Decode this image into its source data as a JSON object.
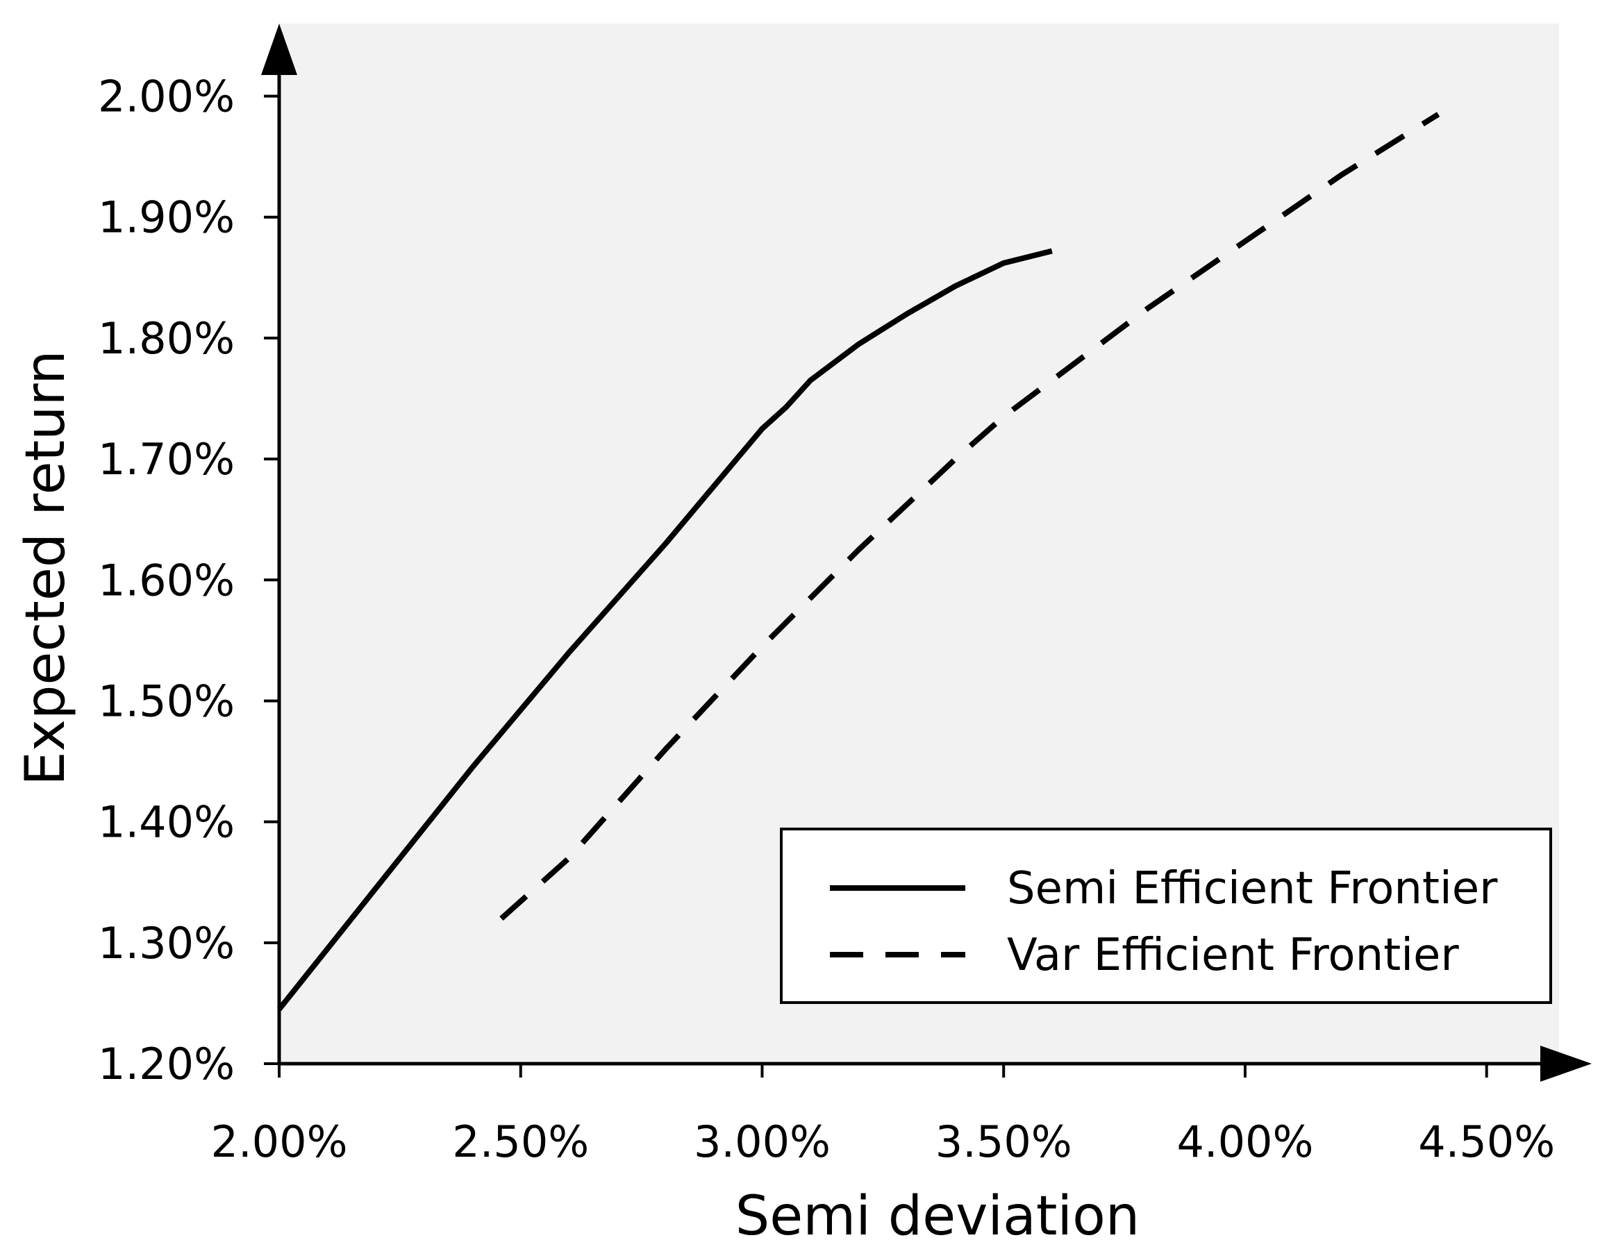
{
  "chart_data": {
    "type": "line",
    "title": "",
    "xlabel": "Semi deviation",
    "ylabel": "Expected return",
    "xlim": [
      2.0,
      4.65
    ],
    "ylim": [
      1.2,
      2.06
    ],
    "xticks": [
      2.0,
      2.5,
      3.0,
      3.5,
      4.0,
      4.5
    ],
    "xtick_labels": [
      "2.00%",
      "2.50%",
      "3.00%",
      "3.50%",
      "4.00%",
      "4.50%"
    ],
    "yticks": [
      1.2,
      1.3,
      1.4,
      1.5,
      1.6,
      1.7,
      1.8,
      1.9,
      2.0
    ],
    "ytick_labels": [
      "1.20%",
      "1.30%",
      "1.40%",
      "1.50%",
      "1.60%",
      "1.70%",
      "1.80%",
      "1.90%",
      "2.00%"
    ],
    "grid": false,
    "legend_position": "bottom-right",
    "colors": {
      "plot_background": "#f2f2f2",
      "line": "#000000",
      "axis": "#000000"
    },
    "series": [
      {
        "name": "Semi Efficient Frontier",
        "style": "solid",
        "x": [
          2.0,
          2.2,
          2.4,
          2.6,
          2.8,
          3.0,
          3.05,
          3.1,
          3.2,
          3.3,
          3.4,
          3.5,
          3.6
        ],
        "y": [
          1.245,
          1.345,
          1.445,
          1.54,
          1.63,
          1.725,
          1.743,
          1.765,
          1.795,
          1.82,
          1.843,
          1.862,
          1.872
        ]
      },
      {
        "name": "Var Efficient Frontier",
        "style": "dashed",
        "x": [
          2.46,
          2.6,
          2.8,
          3.0,
          3.2,
          3.4,
          3.5,
          3.6,
          3.8,
          4.0,
          4.2,
          4.4
        ],
        "y": [
          1.32,
          1.37,
          1.46,
          1.545,
          1.625,
          1.7,
          1.735,
          1.765,
          1.825,
          1.88,
          1.935,
          1.985
        ]
      }
    ]
  }
}
